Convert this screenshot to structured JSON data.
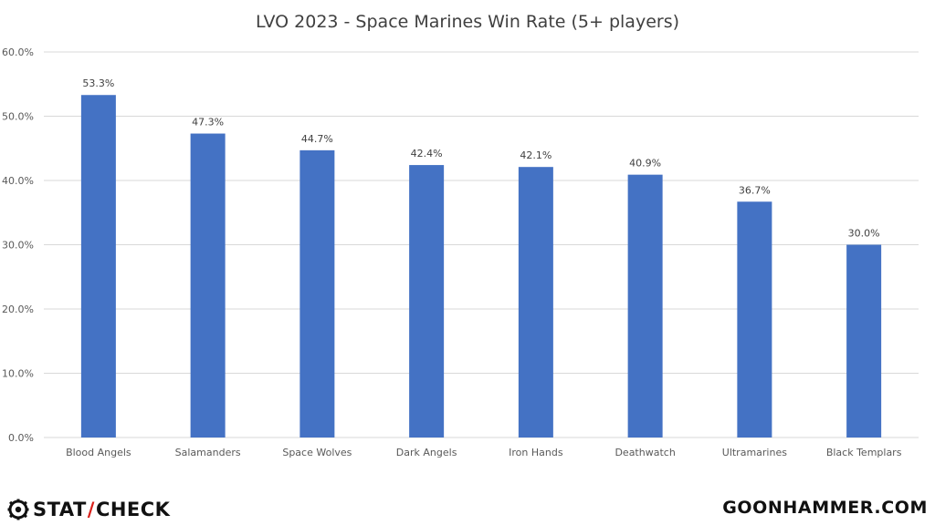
{
  "chart_data": {
    "type": "bar",
    "title": "LVO 2023 - Space Marines Win Rate (5+ players)",
    "xlabel": "",
    "ylabel": "",
    "categories": [
      "Blood Angels",
      "Salamanders",
      "Space Wolves",
      "Dark Angels",
      "Iron Hands",
      "Deathwatch",
      "Ultramarines",
      "Black Templars"
    ],
    "values": [
      53.3,
      47.3,
      44.7,
      42.4,
      42.1,
      40.9,
      36.7,
      30.0
    ],
    "data_labels": [
      "53.3%",
      "47.3%",
      "44.7%",
      "42.4%",
      "42.1%",
      "40.9%",
      "36.7%",
      "30.0%"
    ],
    "ylim": [
      0,
      60
    ],
    "yticks": [
      0,
      10,
      20,
      30,
      40,
      50,
      60
    ],
    "ytick_labels": [
      "0.0%",
      "10.0%",
      "20.0%",
      "30.0%",
      "40.0%",
      "50.0%",
      "60.0%"
    ],
    "grid": true,
    "bar_color": "#4472c4"
  },
  "branding": {
    "left_logo_prefix": "STAT",
    "left_logo_slash": "/",
    "left_logo_suffix": "CHECK",
    "right_logo": "GOONHAMMER.COM"
  },
  "colors": {
    "gridline": "#d9d9d9",
    "text": "#595959",
    "title": "#404040",
    "slash": "#d9201a"
  }
}
